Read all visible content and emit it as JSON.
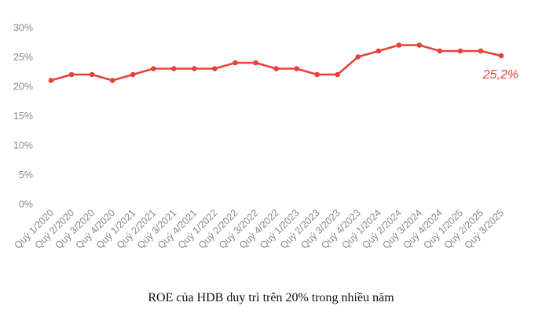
{
  "chart_data": {
    "type": "line",
    "title": "",
    "xlabel": "",
    "ylabel": "",
    "ylim": [
      0,
      30
    ],
    "yticks": [
      "0%",
      "5%",
      "10%",
      "15%",
      "20%",
      "25%",
      "30%"
    ],
    "ytick_values": [
      0,
      5,
      10,
      15,
      20,
      25,
      30
    ],
    "grid": false,
    "legend": null,
    "categories": [
      "Quý 1/2020",
      "Quý 2/2020",
      "Quý 3/2020",
      "Quý 4/2020",
      "Quý 1/2021",
      "Quý 2/2021",
      "Quý 3/2021",
      "Quý 4/2021",
      "Quý 1/2022",
      "Quý 2/2022",
      "Quý 3/2022",
      "Quý 4/2022",
      "Quý 1/2023",
      "Quý 2/2023",
      "Quý 3/2023",
      "Quý 4/2023",
      "Quý 1/2024",
      "Quý 2/2024",
      "Quý 3/2024",
      "Quý 4/2024",
      "Quý 1/2025",
      "Quý 2/2025",
      "Quý 3/2025"
    ],
    "series": [
      {
        "name": "ROE",
        "color": "#e8423a",
        "values": [
          21,
          22,
          22,
          21,
          22,
          23,
          23,
          23,
          23,
          24,
          24,
          23,
          23,
          22,
          22,
          25,
          26,
          27,
          27,
          26,
          26,
          26,
          25.2
        ]
      }
    ],
    "annotations": [
      {
        "text": "25,2%",
        "category": "Quý 3/2025",
        "color": "#e8423a",
        "style": "italic"
      }
    ]
  },
  "caption": "ROE của HDB duy trì trên 20% trong nhiều năm",
  "colors": {
    "line": "#e8423a",
    "axis_text": "#8a8a8a",
    "caption": "#111111"
  }
}
